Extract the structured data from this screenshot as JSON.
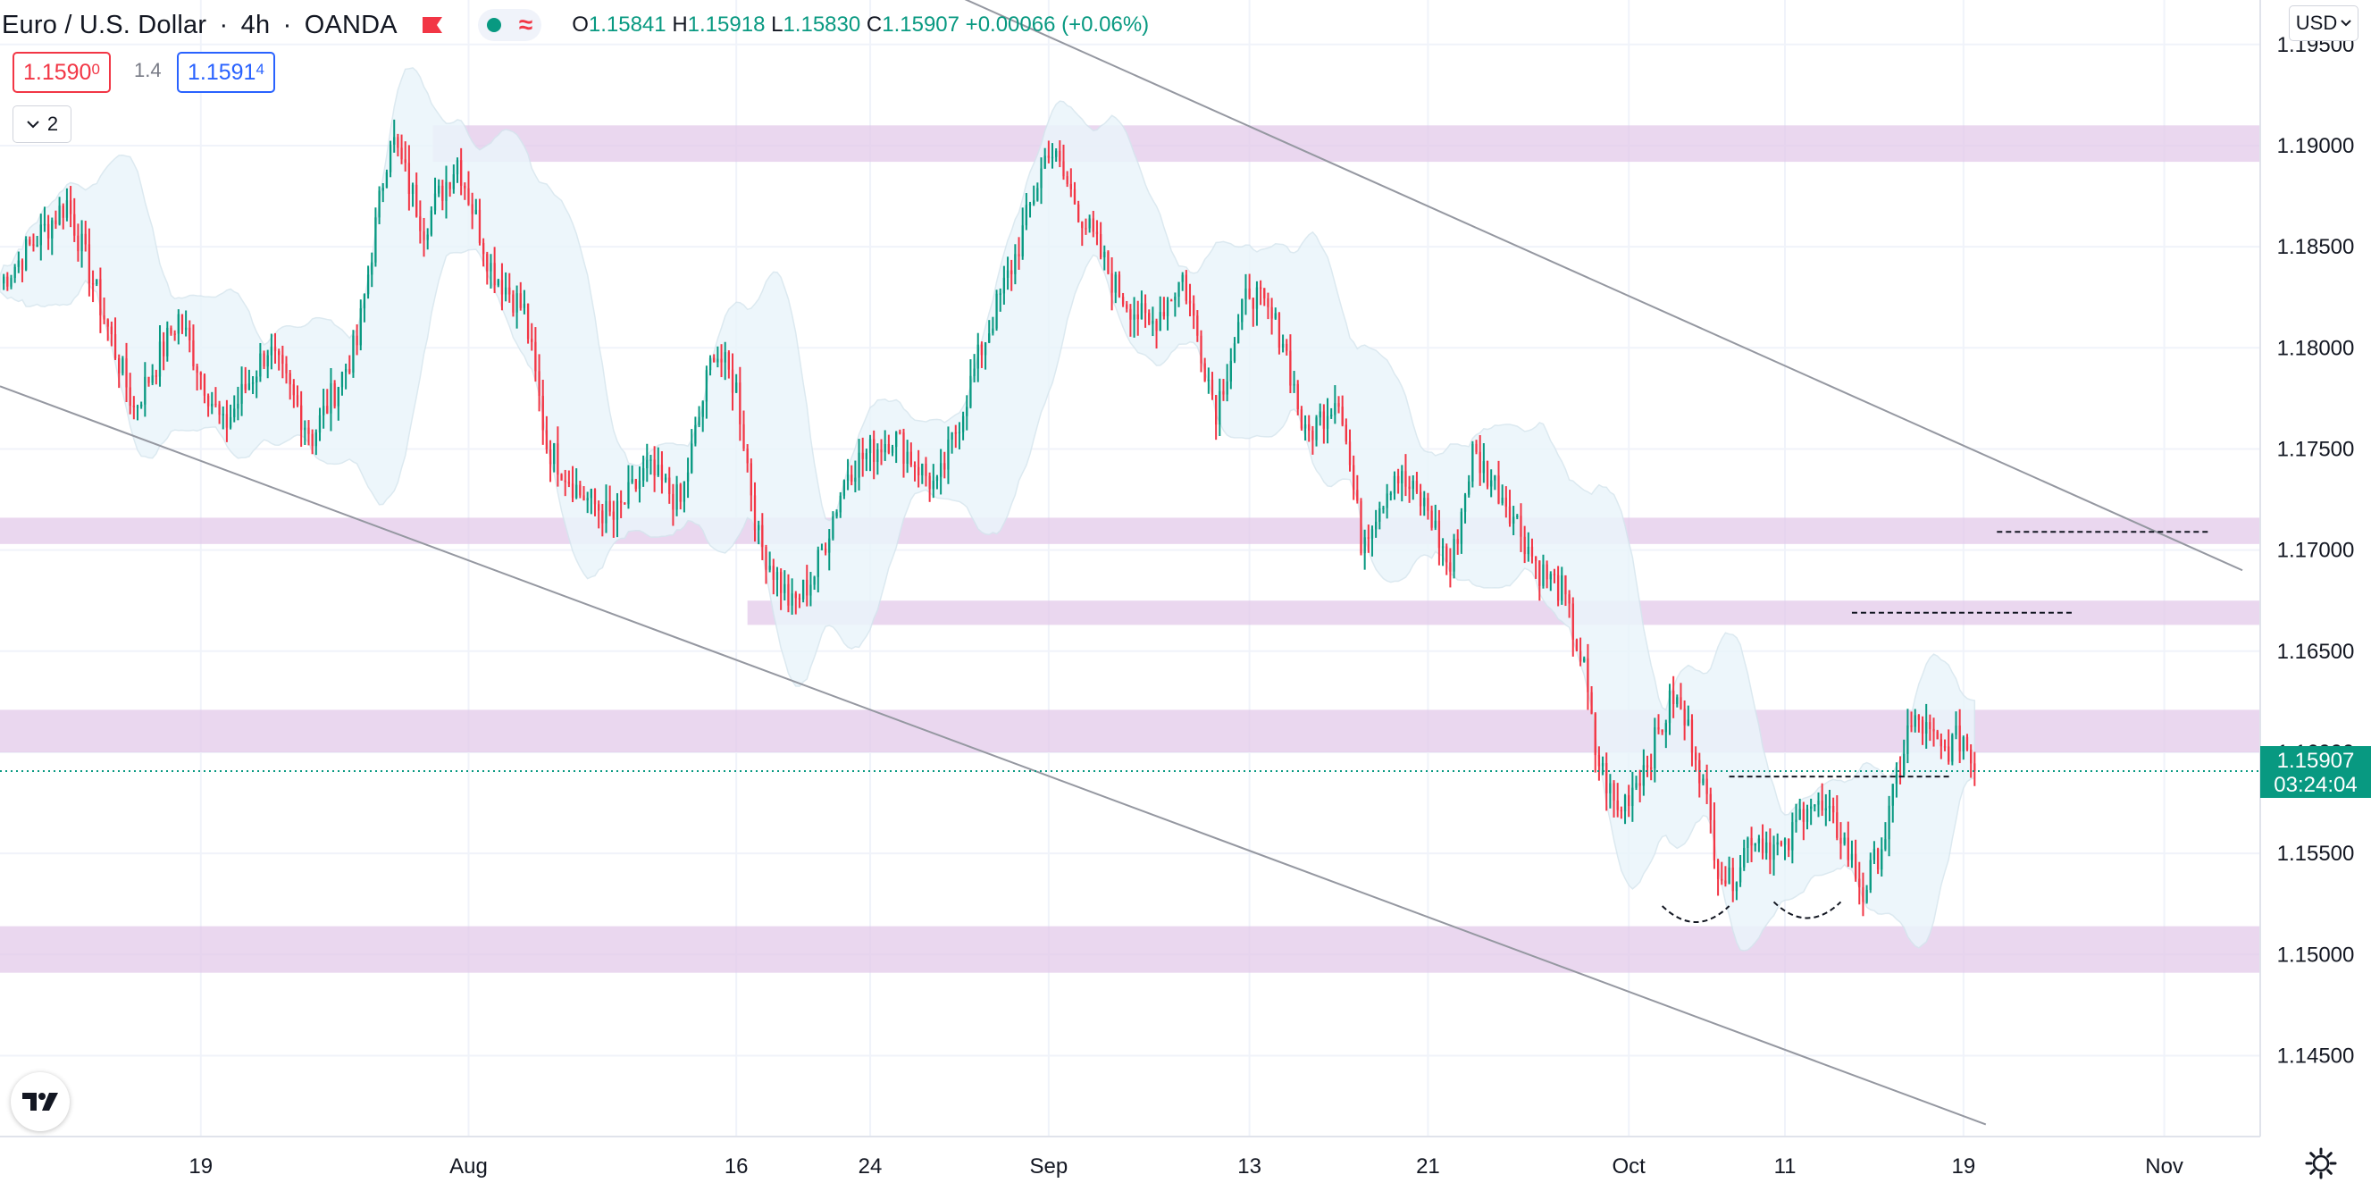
{
  "header": {
    "symbol": "Euro / U.S. Dollar",
    "interval": "4h",
    "exchange": "OANDA",
    "ohlc": {
      "o_label": "O",
      "o": "1.15841",
      "h_label": "H",
      "h": "1.15918",
      "l_label": "L",
      "l": "1.15830",
      "c_label": "C",
      "c": "1.15907",
      "change": "+0.00066 (+0.06%)"
    },
    "wave_glyph": "≈"
  },
  "trade": {
    "sell_main": "1.1590",
    "sell_sup": "0",
    "spread": "1.4",
    "buy_main": "1.1591",
    "buy_sup": "4"
  },
  "indicators_toggle": {
    "icon": "chevron-down-icon",
    "count": "2"
  },
  "currency_label": "USD",
  "logo_text": "TV",
  "colors": {
    "bull": "#089981",
    "bear": "#f23645",
    "zone": "#e1c6e8",
    "band": "#eaf5fb",
    "grid": "#f0f3fa",
    "trend": "#9598a1"
  },
  "chart_data": {
    "type": "candlestick",
    "title": "",
    "xlabel": "",
    "ylabel": "",
    "ylim": [
      1.141,
      1.1972
    ],
    "y_ticks": [
      "1.19500",
      "1.19000",
      "1.18500",
      "1.18000",
      "1.17500",
      "1.17000",
      "1.16500",
      "1.16000",
      "1.15500",
      "1.15000",
      "1.14500"
    ],
    "x_ticks": [
      "19",
      "Aug",
      "16",
      "24",
      "Sep",
      "13",
      "21",
      "Oct",
      "11",
      "19",
      "Nov"
    ],
    "last_price": "1.15907",
    "countdown": "03:24:04",
    "anchors": [
      {
        "day": 0,
        "price": 1.1832
      },
      {
        "day": 3,
        "price": 1.1872
      },
      {
        "day": 6,
        "price": 1.177
      },
      {
        "day": 8,
        "price": 1.1815
      },
      {
        "day": 10,
        "price": 1.176
      },
      {
        "day": 12,
        "price": 1.18
      },
      {
        "day": 14,
        "price": 1.1756
      },
      {
        "day": 16,
        "price": 1.1802
      },
      {
        "day": 17.5,
        "price": 1.1906
      },
      {
        "day": 19,
        "price": 1.186
      },
      {
        "day": 20.5,
        "price": 1.1893
      },
      {
        "day": 22,
        "price": 1.184
      },
      {
        "day": 23.5,
        "price": 1.1818
      },
      {
        "day": 24.5,
        "price": 1.1752
      },
      {
        "day": 26,
        "price": 1.1728
      },
      {
        "day": 27.5,
        "price": 1.1715
      },
      {
        "day": 29,
        "price": 1.174
      },
      {
        "day": 30.5,
        "price": 1.1723
      },
      {
        "day": 32,
        "price": 1.18
      },
      {
        "day": 33,
        "price": 1.178
      },
      {
        "day": 34,
        "price": 1.1705
      },
      {
        "day": 35.5,
        "price": 1.1672
      },
      {
        "day": 36.5,
        "price": 1.1688
      },
      {
        "day": 38,
        "price": 1.174
      },
      {
        "day": 40,
        "price": 1.1757
      },
      {
        "day": 42,
        "price": 1.173
      },
      {
        "day": 44,
        "price": 1.18
      },
      {
        "day": 45.5,
        "price": 1.1845
      },
      {
        "day": 47,
        "price": 1.19
      },
      {
        "day": 48.5,
        "price": 1.1865
      },
      {
        "day": 50,
        "price": 1.183
      },
      {
        "day": 51.5,
        "price": 1.181
      },
      {
        "day": 53,
        "price": 1.1835
      },
      {
        "day": 54.5,
        "price": 1.177
      },
      {
        "day": 56,
        "price": 1.183
      },
      {
        "day": 57.5,
        "price": 1.1805
      },
      {
        "day": 58.5,
        "price": 1.1755
      },
      {
        "day": 60,
        "price": 1.1778
      },
      {
        "day": 61,
        "price": 1.1705
      },
      {
        "day": 62.5,
        "price": 1.1738
      },
      {
        "day": 64,
        "price": 1.172
      },
      {
        "day": 65,
        "price": 1.169
      },
      {
        "day": 66,
        "price": 1.1748
      },
      {
        "day": 67.5,
        "price": 1.1725
      },
      {
        "day": 69,
        "price": 1.169
      },
      {
        "day": 70,
        "price": 1.168
      },
      {
        "day": 71,
        "price": 1.164
      },
      {
        "day": 71.5,
        "price": 1.16
      },
      {
        "day": 72.5,
        "price": 1.157
      },
      {
        "day": 74,
        "price": 1.16
      },
      {
        "day": 75,
        "price": 1.1628
      },
      {
        "day": 76,
        "price": 1.1602
      },
      {
        "day": 77,
        "price": 1.1545
      },
      {
        "day": 77.5,
        "price": 1.1535
      },
      {
        "day": 78.5,
        "price": 1.156
      },
      {
        "day": 80,
        "price": 1.155
      },
      {
        "day": 81,
        "price": 1.1578
      },
      {
        "day": 82.5,
        "price": 1.156
      },
      {
        "day": 83.5,
        "price": 1.153
      },
      {
        "day": 84.5,
        "price": 1.156
      },
      {
        "day": 85.5,
        "price": 1.161
      },
      {
        "day": 86,
        "price": 1.1615
      },
      {
        "day": 87,
        "price": 1.16
      },
      {
        "day": 88,
        "price": 1.1608
      },
      {
        "day": 88.5,
        "price": 1.15907
      }
    ],
    "candles_per_day": 6,
    "zones": [
      {
        "from_day": 19.4,
        "low": 1.1892,
        "high": 1.191
      },
      {
        "from_day": 0,
        "low": 1.1703,
        "high": 1.1716
      },
      {
        "from_day": 33.5,
        "low": 1.1663,
        "high": 1.1675
      },
      {
        "from_day": 0,
        "low": 1.16,
        "high": 1.1621
      },
      {
        "from_day": 0,
        "low": 1.1491,
        "high": 1.1514
      }
    ],
    "trendlines": [
      {
        "d1": 34,
        "p1": 1.2018,
        "d2": 100.5,
        "p2": 1.169
      },
      {
        "d1": 0,
        "p1": 1.1781,
        "d2": 89,
        "p2": 1.1416
      }
    ],
    "levels_dashed": [
      {
        "d1": 89.5,
        "d2": 99,
        "price": 1.1709
      },
      {
        "d1": 83,
        "d2": 93,
        "price": 1.1669
      },
      {
        "d1": 77.5,
        "d2": 87.5,
        "price": 1.1588
      }
    ],
    "arcs": [
      {
        "d1": 74.5,
        "d2": 77.5,
        "price": 1.1524
      },
      {
        "d1": 79.5,
        "d2": 82.5,
        "price": 1.1526
      }
    ],
    "x_tick_days": [
      9,
      21,
      33,
      39,
      47,
      56,
      64,
      73,
      80,
      88,
      97
    ],
    "x_range_days": [
      0,
      101.3
    ]
  }
}
